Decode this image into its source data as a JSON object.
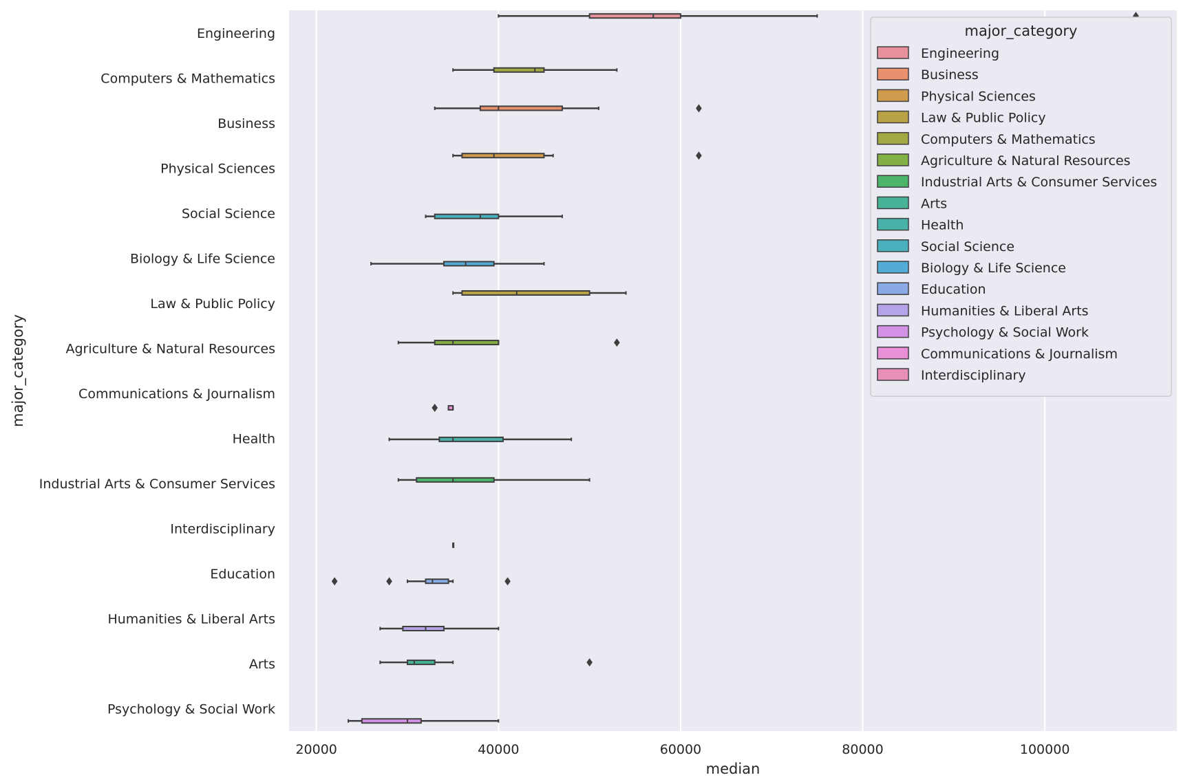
{
  "chart_data": {
    "type": "boxplot",
    "orientation": "horizontal",
    "xlabel": "median",
    "ylabel": "major_category",
    "xlim": [
      17000,
      114500
    ],
    "xticks": [
      20000,
      40000,
      60000,
      80000,
      100000
    ],
    "xtick_labels": [
      "20000",
      "40000",
      "60000",
      "80000",
      "100000"
    ],
    "grid": true,
    "categories": [
      "Engineering",
      "Computers & Mathematics",
      "Business",
      "Physical Sciences",
      "Social Science",
      "Biology & Life Science",
      "Law & Public Policy",
      "Agriculture & Natural Resources",
      "Communications & Journalism",
      "Health",
      "Industrial Arts & Consumer Services",
      "Interdisciplinary",
      "Education",
      "Humanities & Liberal Arts",
      "Arts",
      "Psychology & Social Work"
    ],
    "series": [
      {
        "name": "Engineering",
        "color": "#e8919c",
        "row": 0,
        "whislo": 40000,
        "q1": 50000,
        "med": 57000,
        "q3": 60000,
        "whishi": 75000,
        "fliers": [
          110000
        ]
      },
      {
        "name": "Business",
        "color": "#e9906f",
        "row": 2,
        "whislo": 33000,
        "q1": 38000,
        "med": 40000,
        "q3": 47000,
        "whishi": 51000,
        "fliers": [
          62000
        ]
      },
      {
        "name": "Physical Sciences",
        "color": "#cf9b4c",
        "row": 3,
        "whislo": 35000,
        "q1": 36000,
        "med": 39500,
        "q3": 45000,
        "whishi": 46000,
        "fliers": [
          62000
        ]
      },
      {
        "name": "Law & Public Policy",
        "color": "#b9a245",
        "row": 6,
        "whislo": 35000,
        "q1": 36000,
        "med": 42000,
        "q3": 50000,
        "whishi": 54000,
        "fliers": []
      },
      {
        "name": "Computers & Mathematics",
        "color": "#a2a844",
        "row": 1,
        "whislo": 35000,
        "q1": 39500,
        "med": 44000,
        "q3": 45000,
        "whishi": 53000,
        "fliers": []
      },
      {
        "name": "Agriculture & Natural Resources",
        "color": "#82b045",
        "row": 7,
        "whislo": 29000,
        "q1": 33000,
        "med": 35000,
        "q3": 40000,
        "whishi": 40000,
        "fliers": [
          53000
        ]
      },
      {
        "name": "Industrial Arts & Consumer Services",
        "color": "#4db569",
        "row": 10,
        "whislo": 29000,
        "q1": 31000,
        "med": 35000,
        "q3": 39500,
        "whishi": 50000,
        "fliers": []
      },
      {
        "name": "Arts",
        "color": "#47b396",
        "row": 14,
        "whislo": 27000,
        "q1": 30000,
        "med": 30750,
        "q3": 33000,
        "whishi": 35000,
        "fliers": [
          50000
        ]
      },
      {
        "name": "Health",
        "color": "#48b2a9",
        "row": 9,
        "whislo": 28000,
        "q1": 33500,
        "med": 35000,
        "q3": 40500,
        "whishi": 48000,
        "fliers": []
      },
      {
        "name": "Social Science",
        "color": "#4ab0bd",
        "row": 4,
        "whislo": 32000,
        "q1": 33000,
        "med": 38000,
        "q3": 40000,
        "whishi": 47000,
        "fliers": []
      },
      {
        "name": "Biology & Life Science",
        "color": "#53abd6",
        "row": 5,
        "whislo": 26000,
        "q1": 34000,
        "med": 36400,
        "q3": 39500,
        "whishi": 45000,
        "fliers": []
      },
      {
        "name": "Education",
        "color": "#8aaae6",
        "row": 12,
        "whislo": 30000,
        "q1": 32000,
        "med": 32750,
        "q3": 34500,
        "whishi": 35000,
        "fliers": [
          22000,
          28000,
          41000
        ]
      },
      {
        "name": "Humanities & Liberal Arts",
        "color": "#b5a3e8",
        "row": 13,
        "whislo": 27000,
        "q1": 29500,
        "med": 32000,
        "q3": 34000,
        "whishi": 40000,
        "fliers": []
      },
      {
        "name": "Psychology & Social Work",
        "color": "#d492e6",
        "row": 15,
        "whislo": 23500,
        "q1": 25000,
        "med": 30000,
        "q3": 31500,
        "whishi": 40000,
        "fliers": []
      },
      {
        "name": "Communications & Journalism",
        "color": "#e88fd8",
        "row": 8,
        "whislo": 34500,
        "q1": 34500,
        "med": 35000,
        "q3": 35000,
        "whishi": 35000,
        "fliers": [
          33000
        ]
      },
      {
        "name": "Interdisciplinary",
        "color": "#e88fb8",
        "row": 11,
        "whislo": 35000,
        "q1": 35000,
        "med": 35000,
        "q3": 35000,
        "whishi": 35000,
        "fliers": []
      }
    ],
    "legend": {
      "title": "major_category",
      "location": "upper right",
      "entries": [
        "Engineering",
        "Business",
        "Physical Sciences",
        "Law & Public Policy",
        "Computers & Mathematics",
        "Agriculture & Natural Resources",
        "Industrial Arts & Consumer Services",
        "Arts",
        "Health",
        "Social Science",
        "Biology & Life Science",
        "Education",
        "Humanities & Liberal Arts",
        "Psychology & Social Work",
        "Communications & Journalism",
        "Interdisciplinary"
      ]
    },
    "colors": {
      "plot_background": "#eaeaf2",
      "grid": "#ffffff",
      "box_edge": "#3f3f3f"
    }
  }
}
